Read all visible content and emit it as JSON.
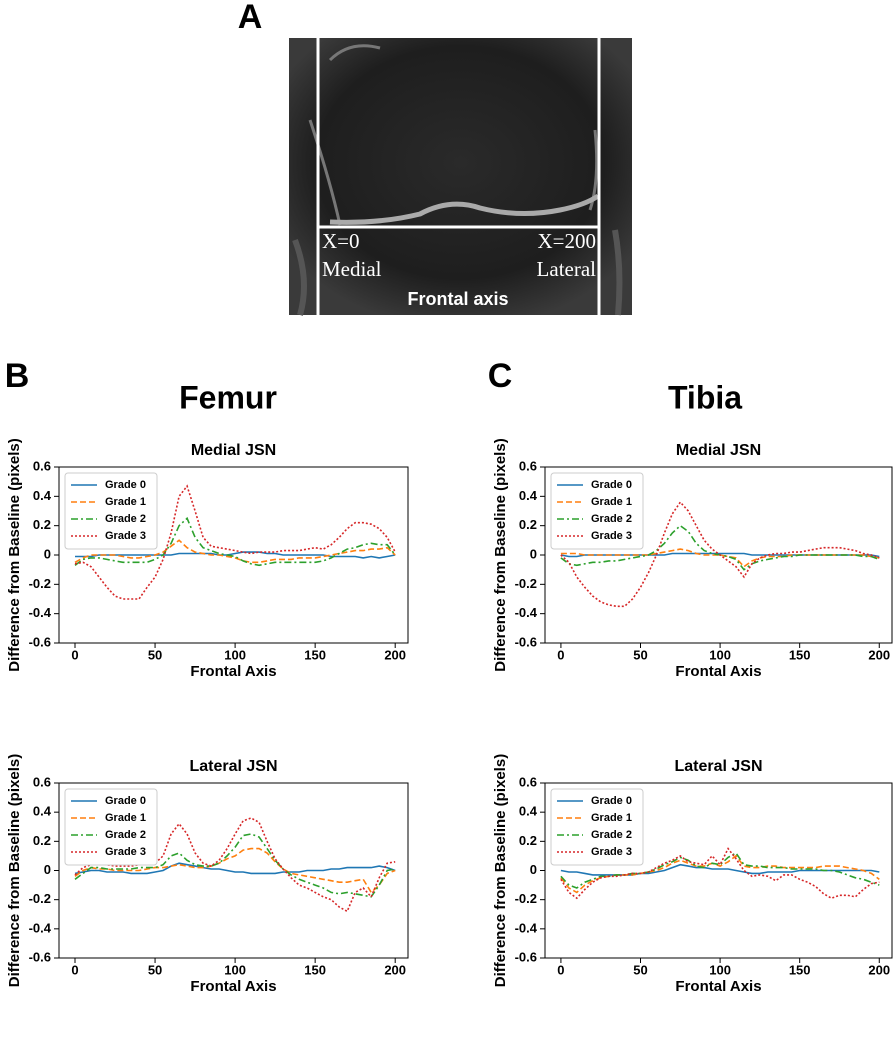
{
  "panel_a": {
    "label": "A",
    "left_marker": "X=0",
    "left_side": "Medial",
    "right_marker": "X=200",
    "right_side": "Lateral",
    "axis_label": "Frontal axis"
  },
  "panel_b": {
    "label": "B",
    "title": "Femur"
  },
  "panel_c": {
    "label": "C",
    "title": "Tibia"
  },
  "chart_data": [
    {
      "type": "line",
      "title": "Medial JSN",
      "xlabel": "Frontal Axis",
      "ylabel": "Difference from Baseline (pixels)",
      "legend": "upper left",
      "xlim": [
        -10,
        208
      ],
      "ylim": [
        -0.6,
        0.6
      ],
      "xticks": [
        0,
        50,
        100,
        150,
        200
      ],
      "yticks": [
        -0.6,
        -0.4,
        -0.2,
        0,
        0.2,
        0.4,
        0.6
      ],
      "x": [
        0,
        5,
        10,
        15,
        20,
        25,
        30,
        35,
        40,
        45,
        50,
        55,
        60,
        65,
        70,
        75,
        80,
        85,
        90,
        95,
        100,
        105,
        110,
        115,
        120,
        125,
        130,
        135,
        140,
        145,
        150,
        155,
        160,
        165,
        170,
        175,
        180,
        185,
        190,
        195,
        200
      ],
      "series": [
        {
          "name": "Grade 0",
          "color": "#1f77b4",
          "linestyle": "solid",
          "values": [
            -0.01,
            -0.01,
            -0.01,
            0,
            0,
            0,
            0,
            0,
            0,
            0,
            0,
            0,
            0,
            0.01,
            0.01,
            0.01,
            0.01,
            0.01,
            0,
            0,
            0.01,
            0.02,
            0.02,
            0.02,
            0.01,
            0.01,
            0,
            0,
            0,
            0,
            0,
            0,
            -0.01,
            -0.01,
            -0.01,
            -0.01,
            -0.02,
            -0.01,
            -0.02,
            -0.01,
            0
          ]
        },
        {
          "name": "Grade 1",
          "color": "#ff7f0e",
          "linestyle": "dashed",
          "values": [
            -0.05,
            -0.02,
            0,
            0,
            0,
            0,
            -0.01,
            -0.02,
            -0.02,
            -0.01,
            0,
            0.02,
            0.06,
            0.1,
            0.05,
            0.02,
            0.01,
            0,
            0,
            -0.01,
            -0.02,
            -0.04,
            -0.05,
            -0.05,
            -0.04,
            -0.03,
            -0.03,
            -0.03,
            -0.02,
            -0.02,
            -0.02,
            -0.01,
            0,
            0.01,
            0.02,
            0.03,
            0.03,
            0.04,
            0.04,
            0.05,
            0
          ]
        },
        {
          "name": "Grade 2",
          "color": "#2ca02c",
          "linestyle": "dashdot",
          "values": [
            -0.07,
            -0.03,
            -0.02,
            -0.02,
            -0.03,
            -0.04,
            -0.05,
            -0.05,
            -0.05,
            -0.05,
            -0.03,
            0,
            0.08,
            0.2,
            0.25,
            0.12,
            0.05,
            0.03,
            0.01,
            0,
            -0.01,
            -0.04,
            -0.06,
            -0.07,
            -0.06,
            -0.05,
            -0.05,
            -0.05,
            -0.05,
            -0.05,
            -0.05,
            -0.04,
            -0.02,
            0.01,
            0.04,
            0.05,
            0.07,
            0.08,
            0.07,
            0.07,
            0
          ]
        },
        {
          "name": "Grade 3",
          "color": "#d62728",
          "linestyle": "dotted",
          "values": [
            -0.06,
            -0.05,
            -0.08,
            -0.15,
            -0.22,
            -0.28,
            -0.3,
            -0.3,
            -0.3,
            -0.22,
            -0.15,
            -0.03,
            0.15,
            0.4,
            0.47,
            0.3,
            0.12,
            0.06,
            0.05,
            0.04,
            0.03,
            0.02,
            0.01,
            0.02,
            0.02,
            0.02,
            0.03,
            0.03,
            0.03,
            0.04,
            0.05,
            0.04,
            0.07,
            0.12,
            0.18,
            0.22,
            0.22,
            0.21,
            0.18,
            0.12,
            0.02
          ]
        }
      ]
    },
    {
      "type": "line",
      "title": "Lateral JSN",
      "xlabel": "Frontal Axis",
      "ylabel": "Difference from Baseline (pixels)",
      "legend": "upper left",
      "xlim": [
        -10,
        208
      ],
      "ylim": [
        -0.6,
        0.6
      ],
      "xticks": [
        0,
        50,
        100,
        150,
        200
      ],
      "yticks": [
        -0.6,
        -0.4,
        -0.2,
        0,
        0.2,
        0.4,
        0.6
      ],
      "x": [
        0,
        5,
        10,
        15,
        20,
        25,
        30,
        35,
        40,
        45,
        50,
        55,
        60,
        65,
        70,
        75,
        80,
        85,
        90,
        95,
        100,
        105,
        110,
        115,
        120,
        125,
        130,
        135,
        140,
        145,
        150,
        155,
        160,
        165,
        170,
        175,
        180,
        185,
        190,
        195,
        200
      ],
      "series": [
        {
          "name": "Grade 0",
          "color": "#1f77b4",
          "linestyle": "solid",
          "values": [
            -0.02,
            -0.01,
            0,
            0,
            -0.01,
            -0.01,
            -0.01,
            -0.02,
            -0.02,
            -0.02,
            -0.01,
            0,
            0.03,
            0.05,
            0.04,
            0.03,
            0.02,
            0.01,
            0.01,
            0,
            -0.01,
            -0.01,
            -0.02,
            -0.02,
            -0.02,
            -0.02,
            -0.01,
            -0.01,
            -0.01,
            0,
            0,
            0,
            0.01,
            0.01,
            0.02,
            0.02,
            0.02,
            0.02,
            0.03,
            0.02,
            0
          ]
        },
        {
          "name": "Grade 1",
          "color": "#ff7f0e",
          "linestyle": "dashed",
          "values": [
            -0.04,
            0,
            0.02,
            0.01,
            0.01,
            0,
            0,
            0,
            0,
            0.01,
            0.02,
            0.02,
            0.03,
            0.04,
            0.03,
            0.02,
            0.02,
            0.03,
            0.05,
            0.08,
            0.1,
            0.14,
            0.15,
            0.15,
            0.12,
            0.06,
            0.01,
            -0.02,
            -0.03,
            -0.04,
            -0.05,
            -0.06,
            -0.07,
            -0.08,
            -0.08,
            -0.07,
            -0.06,
            -0.15,
            -0.1,
            -0.02,
            0
          ]
        },
        {
          "name": "Grade 2",
          "color": "#2ca02c",
          "linestyle": "dashdot",
          "values": [
            -0.06,
            -0.02,
            0.02,
            0.02,
            0.01,
            0.01,
            0.01,
            0.01,
            0.02,
            0.02,
            0.02,
            0.04,
            0.1,
            0.12,
            0.07,
            0.04,
            0.03,
            0.03,
            0.05,
            0.1,
            0.16,
            0.24,
            0.25,
            0.23,
            0.15,
            0.07,
            0.01,
            -0.03,
            -0.06,
            -0.08,
            -0.1,
            -0.12,
            -0.15,
            -0.16,
            -0.15,
            -0.16,
            -0.17,
            -0.18,
            -0.1,
            0,
            0.01
          ]
        },
        {
          "name": "Grade 3",
          "color": "#d62728",
          "linestyle": "dotted",
          "values": [
            -0.03,
            0.02,
            0.04,
            0.04,
            0.04,
            0.03,
            0.03,
            0.03,
            0.04,
            0.04,
            0.05,
            0.1,
            0.25,
            0.32,
            0.25,
            0.12,
            0.05,
            0.03,
            0.07,
            0.15,
            0.25,
            0.34,
            0.36,
            0.33,
            0.2,
            0.08,
            0.01,
            -0.05,
            -0.1,
            -0.12,
            -0.15,
            -0.18,
            -0.2,
            -0.25,
            -0.28,
            -0.15,
            -0.12,
            -0.18,
            -0.05,
            0.05,
            0.06
          ]
        }
      ]
    },
    {
      "type": "line",
      "title": "Medial JSN",
      "xlabel": "Frontal Axis",
      "ylabel": "Difference from Baseline (pixels)",
      "legend": "upper left",
      "xlim": [
        -10,
        208
      ],
      "ylim": [
        -0.6,
        0.6
      ],
      "xticks": [
        0,
        50,
        100,
        150,
        200
      ],
      "yticks": [
        -0.6,
        -0.4,
        -0.2,
        0,
        0.2,
        0.4,
        0.6
      ],
      "x": [
        0,
        5,
        10,
        15,
        20,
        25,
        30,
        35,
        40,
        45,
        50,
        55,
        60,
        65,
        70,
        75,
        80,
        85,
        90,
        95,
        100,
        105,
        110,
        115,
        120,
        125,
        130,
        135,
        140,
        145,
        150,
        155,
        160,
        165,
        170,
        175,
        180,
        185,
        190,
        195,
        200
      ],
      "series": [
        {
          "name": "Grade 0",
          "color": "#1f77b4",
          "linestyle": "solid",
          "values": [
            0,
            -0.01,
            -0.01,
            0,
            0,
            0,
            0,
            0,
            0,
            0,
            0,
            0,
            0,
            0,
            0.01,
            0.01,
            0.01,
            0.01,
            0.01,
            0.01,
            0.01,
            0.01,
            0.01,
            0.01,
            0,
            0,
            0,
            0,
            0,
            0,
            0,
            0,
            0,
            0,
            0,
            0,
            0,
            0,
            0,
            0,
            -0.01
          ]
        },
        {
          "name": "Grade 1",
          "color": "#ff7f0e",
          "linestyle": "dashed",
          "values": [
            0.01,
            0.01,
            0.01,
            0,
            0,
            0,
            0,
            0,
            0,
            0,
            0,
            0,
            0.01,
            0.02,
            0.03,
            0.04,
            0.03,
            0.01,
            0,
            0,
            0,
            -0.01,
            -0.02,
            -0.08,
            -0.04,
            -0.02,
            -0.01,
            -0.01,
            -0.01,
            0,
            0,
            0,
            0,
            0,
            0,
            0,
            0,
            0,
            0,
            -0.01,
            -0.02
          ]
        },
        {
          "name": "Grade 2",
          "color": "#2ca02c",
          "linestyle": "dashdot",
          "values": [
            -0.02,
            -0.06,
            -0.07,
            -0.06,
            -0.05,
            -0.05,
            -0.04,
            -0.04,
            -0.03,
            -0.02,
            -0.01,
            0,
            0.03,
            0.08,
            0.15,
            0.2,
            0.16,
            0.08,
            0.03,
            0.01,
            0,
            -0.01,
            -0.03,
            -0.1,
            -0.06,
            -0.04,
            -0.03,
            -0.02,
            -0.01,
            -0.01,
            0,
            0,
            0,
            0,
            0,
            0,
            0,
            0,
            -0.01,
            -0.01,
            -0.03
          ]
        },
        {
          "name": "Grade 3",
          "color": "#d62728",
          "linestyle": "dotted",
          "values": [
            0,
            -0.05,
            -0.15,
            -0.22,
            -0.28,
            -0.32,
            -0.34,
            -0.35,
            -0.35,
            -0.3,
            -0.22,
            -0.12,
            0,
            0.15,
            0.28,
            0.36,
            0.3,
            0.2,
            0.1,
            0.04,
            0,
            -0.04,
            -0.08,
            -0.15,
            -0.06,
            -0.02,
            0,
            0.01,
            0.01,
            0.02,
            0.02,
            0.03,
            0.04,
            0.05,
            0.05,
            0.05,
            0.04,
            0.03,
            0.01,
            0,
            -0.02
          ]
        }
      ]
    },
    {
      "type": "line",
      "title": "Lateral JSN",
      "xlabel": "Frontal Axis",
      "ylabel": "Difference from Baseline (pixels)",
      "legend": "upper left",
      "xlim": [
        -10,
        208
      ],
      "ylim": [
        -0.6,
        0.6
      ],
      "xticks": [
        0,
        50,
        100,
        150,
        200
      ],
      "yticks": [
        -0.6,
        -0.4,
        -0.2,
        0,
        0.2,
        0.4,
        0.6
      ],
      "x": [
        0,
        5,
        10,
        15,
        20,
        25,
        30,
        35,
        40,
        45,
        50,
        55,
        60,
        65,
        70,
        75,
        80,
        85,
        90,
        95,
        100,
        105,
        110,
        115,
        120,
        125,
        130,
        135,
        140,
        145,
        150,
        155,
        160,
        165,
        170,
        175,
        180,
        185,
        190,
        195,
        200
      ],
      "series": [
        {
          "name": "Grade 0",
          "color": "#1f77b4",
          "linestyle": "solid",
          "values": [
            0,
            -0.01,
            -0.01,
            -0.02,
            -0.03,
            -0.03,
            -0.03,
            -0.03,
            -0.03,
            -0.03,
            -0.02,
            -0.02,
            -0.01,
            0,
            0.02,
            0.04,
            0.03,
            0.02,
            0.02,
            0.01,
            0.01,
            0.01,
            0,
            -0.01,
            -0.02,
            -0.02,
            -0.01,
            -0.01,
            -0.01,
            -0.01,
            0,
            0,
            0,
            0,
            0,
            0,
            0,
            0,
            0,
            0,
            -0.01
          ]
        },
        {
          "name": "Grade 1",
          "color": "#ff7f0e",
          "linestyle": "dashed",
          "values": [
            -0.05,
            -0.12,
            -0.15,
            -0.1,
            -0.07,
            -0.05,
            -0.04,
            -0.03,
            -0.03,
            -0.03,
            -0.02,
            -0.01,
            0,
            0.02,
            0.05,
            0.07,
            0.05,
            0.03,
            0.03,
            0.05,
            0.03,
            0.06,
            0.1,
            0.03,
            0.02,
            0.02,
            0.03,
            0.03,
            0.02,
            0.02,
            0.02,
            0.02,
            0.02,
            0.03,
            0.03,
            0.03,
            0.02,
            0.01,
            0,
            -0.02,
            -0.06
          ]
        },
        {
          "name": "Grade 2",
          "color": "#2ca02c",
          "linestyle": "dashdot",
          "values": [
            -0.04,
            -0.1,
            -0.12,
            -0.08,
            -0.06,
            -0.04,
            -0.04,
            -0.03,
            -0.03,
            -0.02,
            -0.02,
            -0.01,
            0.01,
            0.04,
            0.06,
            0.09,
            0.07,
            0.03,
            0.02,
            0.05,
            0.04,
            0.09,
            0.12,
            0.04,
            0.03,
            0.03,
            0.02,
            0.02,
            0.02,
            0.01,
            0.01,
            0.01,
            0.01,
            0,
            0,
            -0.01,
            -0.03,
            -0.05,
            -0.06,
            -0.08,
            -0.1
          ]
        },
        {
          "name": "Grade 3",
          "color": "#d62728",
          "linestyle": "dotted",
          "values": [
            -0.06,
            -0.15,
            -0.19,
            -0.13,
            -0.08,
            -0.05,
            -0.04,
            -0.04,
            -0.03,
            -0.02,
            -0.02,
            -0.01,
            0.02,
            0.05,
            0.07,
            0.1,
            0.06,
            0.05,
            0.04,
            0.1,
            0.04,
            0.15,
            0.08,
            0,
            -0.04,
            -0.03,
            -0.04,
            -0.07,
            -0.03,
            -0.03,
            -0.06,
            -0.08,
            -0.11,
            -0.16,
            -0.19,
            -0.17,
            -0.17,
            -0.18,
            -0.13,
            -0.09,
            -0.08
          ]
        }
      ]
    }
  ]
}
